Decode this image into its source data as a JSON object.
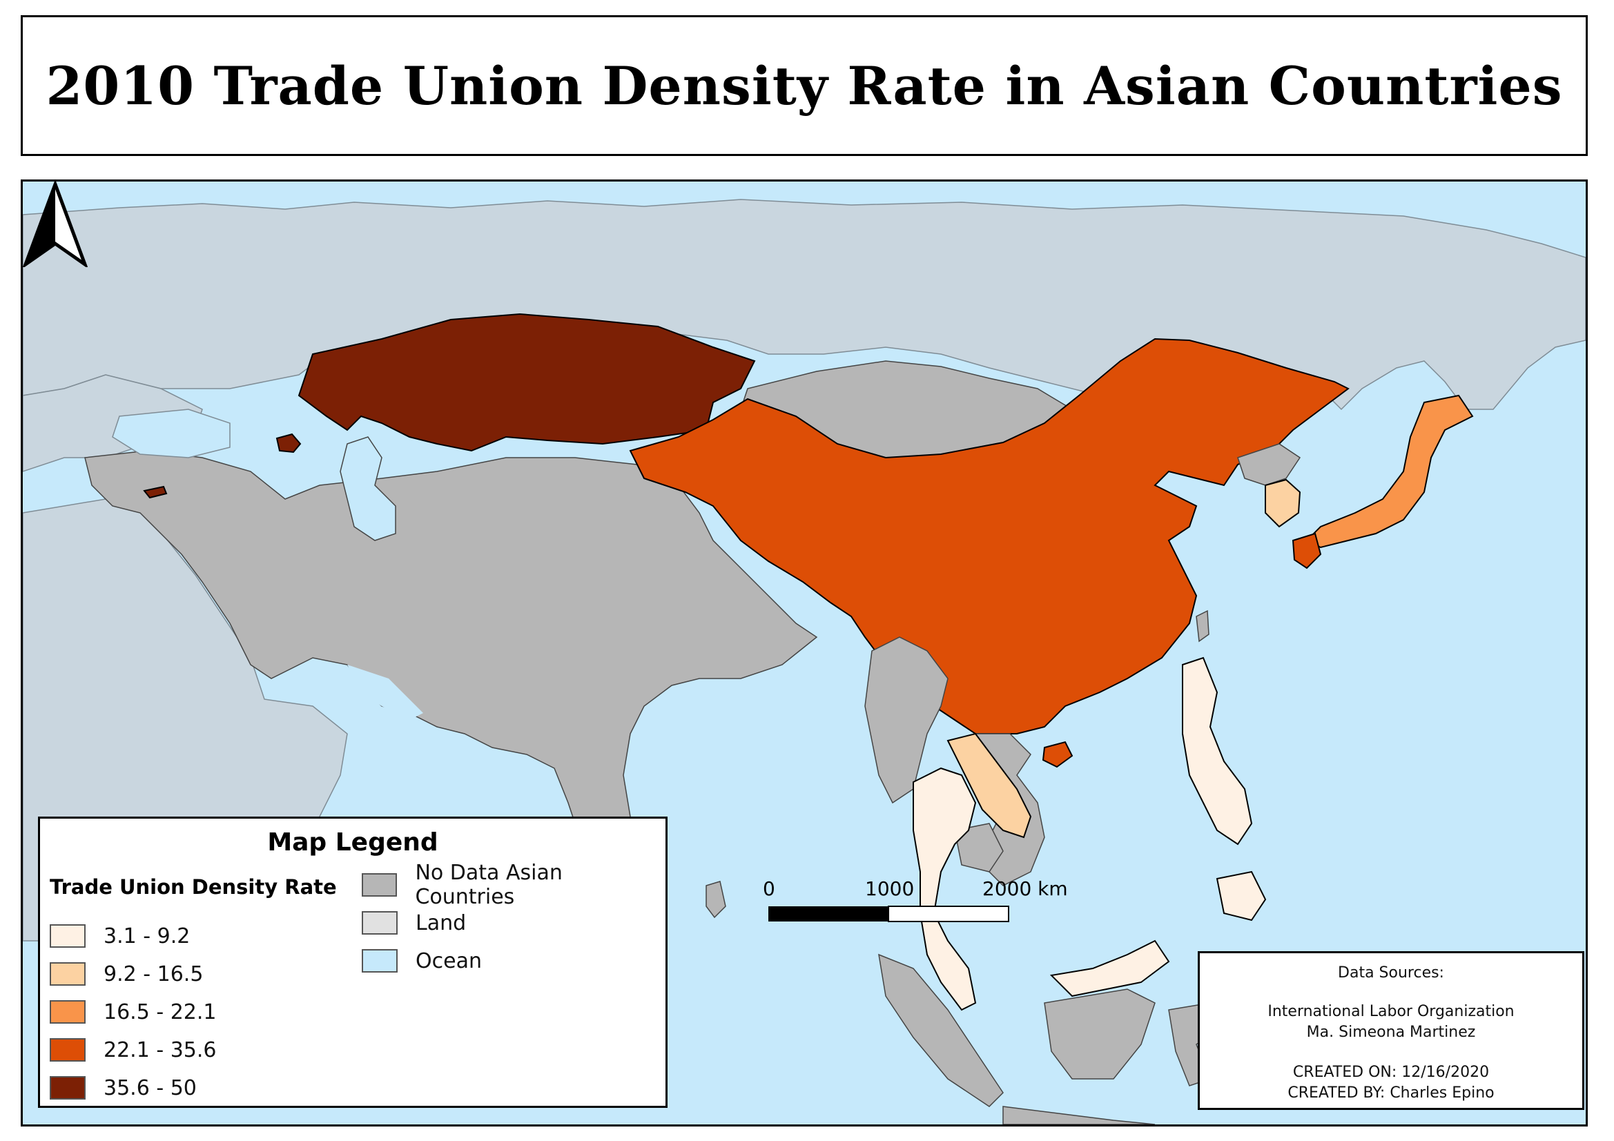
{
  "title": "2010 Trade Union Density Rate in Asian Countries",
  "colors": {
    "ocean": "#c6e9fb",
    "land": "#e1e1e1",
    "no_data": "#b6b6b6",
    "class_1": "#fef1e4",
    "class_2": "#fcd2a2",
    "class_3": "#f9944a",
    "class_4": "#dd4e06",
    "class_5": "#7c2005"
  },
  "legend": {
    "title": "Map Legend",
    "subtitle": "Trade Union Density Rate",
    "classes": [
      {
        "label": "3.1 - 9.2",
        "color": "#fef1e4"
      },
      {
        "label": "9.2 - 16.5",
        "color": "#fcd2a2"
      },
      {
        "label": "16.5 - 22.1",
        "color": "#f9944a"
      },
      {
        "label": "22.1 - 35.6",
        "color": "#dd4e06"
      },
      {
        "label": "35.6 - 50",
        "color": "#7c2005"
      }
    ],
    "other": [
      {
        "label": "No Data Asian Countries",
        "color": "#b6b6b6"
      },
      {
        "label": "Land",
        "color": "#e1e1e1"
      },
      {
        "label": "Ocean",
        "color": "#c6e9fb"
      }
    ]
  },
  "scale": {
    "labels": [
      "0",
      "1000",
      "2000 km"
    ]
  },
  "sources": {
    "heading": "Data Sources:",
    "line1": "International Labor Organization",
    "line2": "Ma. Simeona Martinez",
    "created_on": "CREATED ON: 12/16/2020",
    "created_by": "CREATED BY: Charles Epino"
  },
  "north_arrow_icon": "north-arrow-icon"
}
